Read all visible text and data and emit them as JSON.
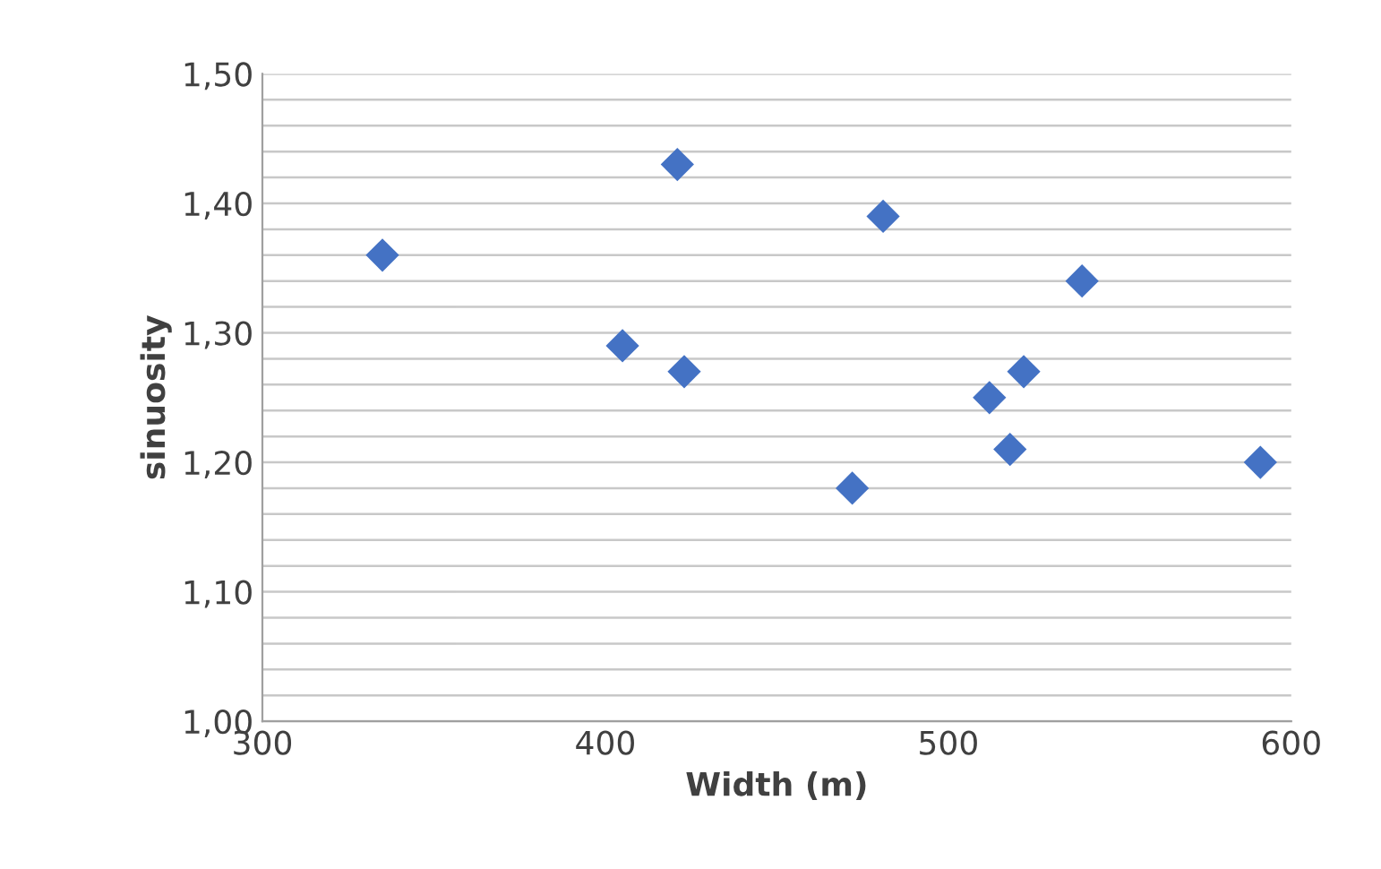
{
  "chart_data": {
    "type": "scatter",
    "xlabel": "Width (m)",
    "ylabel": "sinuosity",
    "x": [
      335,
      421,
      405,
      423,
      481,
      472,
      512,
      522,
      518,
      539,
      591
    ],
    "series": [
      {
        "color": "#4472c4",
        "values": [
          1.36,
          1.43,
          1.29,
          1.27,
          1.39,
          1.18,
          1.25,
          1.27,
          1.21,
          1.34,
          1.2
        ]
      }
    ],
    "xlim": [
      300,
      600
    ],
    "xticks": [
      300,
      400,
      500,
      600
    ],
    "ylim": [
      1.0,
      1.5
    ],
    "yticks": [
      {
        "value": 1.0,
        "label": "1,00"
      },
      {
        "value": 1.02,
        "label": null
      },
      {
        "value": 1.04,
        "label": null
      },
      {
        "value": 1.06,
        "label": null
      },
      {
        "value": 1.08,
        "label": null
      },
      {
        "value": 1.1,
        "label": "1,10"
      },
      {
        "value": 1.12,
        "label": null
      },
      {
        "value": 1.14,
        "label": null
      },
      {
        "value": 1.16,
        "label": null
      },
      {
        "value": 1.18,
        "label": null
      },
      {
        "value": 1.2,
        "label": "1,20"
      },
      {
        "value": 1.22,
        "label": null
      },
      {
        "value": 1.24,
        "label": null
      },
      {
        "value": 1.26,
        "label": null
      },
      {
        "value": 1.28,
        "label": null
      },
      {
        "value": 1.3,
        "label": "1,30"
      },
      {
        "value": 1.32,
        "label": null
      },
      {
        "value": 1.34,
        "label": null
      },
      {
        "value": 1.36,
        "label": null
      },
      {
        "value": 1.38,
        "label": null
      },
      {
        "value": 1.4,
        "label": "1,40"
      },
      {
        "value": 1.42,
        "label": null
      },
      {
        "value": 1.44,
        "label": null
      },
      {
        "value": 1.46,
        "label": null
      },
      {
        "value": 1.48,
        "label": null
      },
      {
        "value": 1.5,
        "label": "1,50"
      }
    ],
    "grid": "y",
    "marker": "diamond"
  }
}
